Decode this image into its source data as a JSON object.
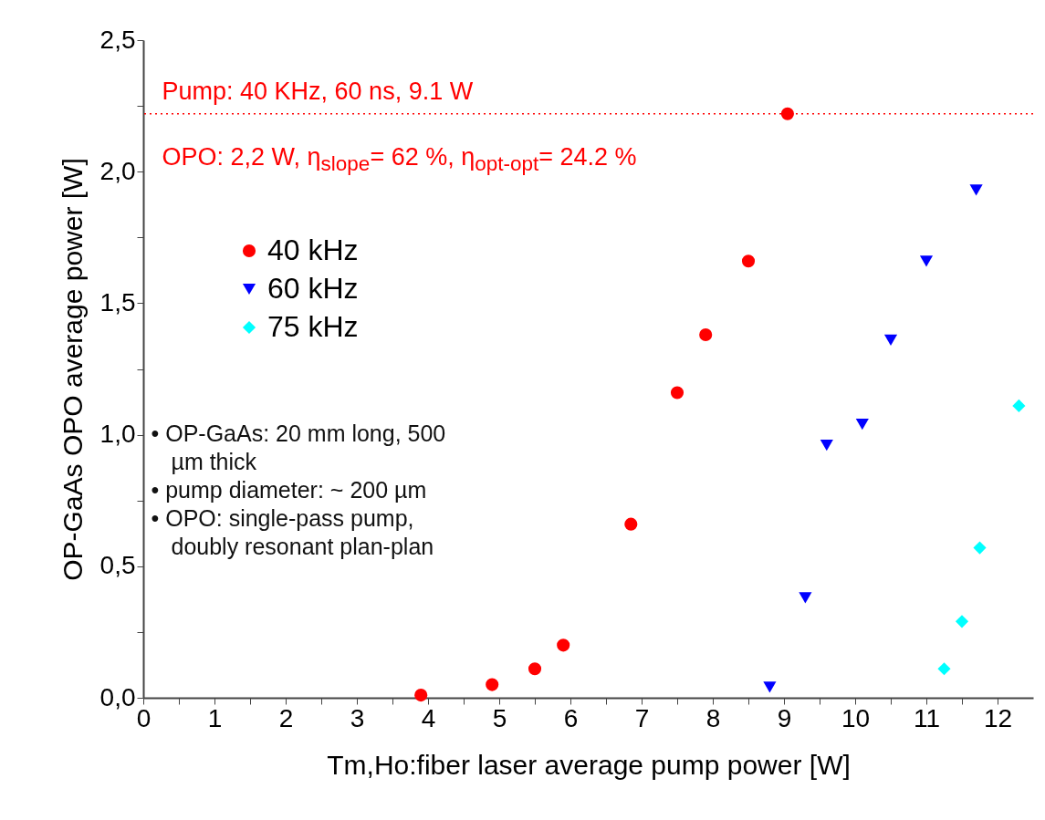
{
  "chart_data": {
    "type": "scatter",
    "xlabel": "Tm,Ho:fiber laser average pump power [W]",
    "ylabel": "OP-GaAs OPO average power [W]",
    "xlim": [
      0,
      12.5
    ],
    "ylim": [
      0,
      2.5
    ],
    "xticks": [
      0,
      {
        "value": 0.5,
        "label": null
      },
      1,
      {
        "value": 1.5,
        "label": null
      },
      2,
      {
        "value": 2.5,
        "label": null
      },
      3,
      {
        "value": 3.5,
        "label": null
      },
      4,
      {
        "value": 4.5,
        "label": null
      },
      5,
      {
        "value": 5.5,
        "label": null
      },
      6,
      {
        "value": 6.5,
        "label": null
      },
      7,
      {
        "value": 7.5,
        "label": null
      },
      8,
      {
        "value": 8.5,
        "label": null
      },
      9,
      {
        "value": 9.5,
        "label": null
      },
      10,
      {
        "value": 10.5,
        "label": null
      },
      11,
      {
        "value": 11.5,
        "label": null
      },
      12
    ],
    "yticks": [
      {
        "value": 0,
        "label": "0,0"
      },
      {
        "value": 0.25,
        "label": null
      },
      {
        "value": 0.5,
        "label": "0,5"
      },
      {
        "value": 0.75,
        "label": null
      },
      {
        "value": 1,
        "label": "1,0"
      },
      {
        "value": 1.25,
        "label": null
      },
      {
        "value": 1.5,
        "label": "1,5"
      },
      {
        "value": 1.75,
        "label": null
      },
      {
        "value": 2,
        "label": "2,0"
      },
      {
        "value": 2.25,
        "label": null
      },
      {
        "value": 2.5,
        "label": "2,5"
      }
    ],
    "grid": false,
    "legend": "left",
    "series": [
      {
        "name": "40 kHz",
        "color": "#ff0000",
        "marker": "circle",
        "x": [
          3.9,
          4.9,
          5.5,
          5.9,
          6.85,
          7.5,
          7.9,
          8.5,
          9.05
        ],
        "values": [
          0.01,
          0.05,
          0.11,
          0.2,
          0.66,
          1.16,
          1.38,
          1.66,
          2.22
        ]
      },
      {
        "name": "60 kHz",
        "color": "#0000ff",
        "marker": "triangle",
        "x": [
          8.8,
          9.3,
          9.6,
          10.1,
          10.5,
          11.0,
          11.7
        ],
        "values": [
          0.04,
          0.38,
          0.96,
          1.04,
          1.36,
          1.66,
          1.93
        ]
      },
      {
        "name": "75 kHz",
        "color": "#00ffff",
        "marker": "diamond",
        "x": [
          11.25,
          11.5,
          11.75,
          12.3
        ],
        "values": [
          0.11,
          0.29,
          0.57,
          1.11
        ]
      }
    ],
    "ref_lines": [
      {
        "axis": "y",
        "value": 2.22,
        "color": "#ff0000",
        "line_style": "dotted"
      }
    ],
    "annotations": [
      "Pump: 40 KHz,  60 ns,  9.1 W",
      "OPO: 2,2 W, η$_{slope}$= 62 %, η$_{opt-opt}$= 24.2 %",
      "• OP-GaAs: 20 mm long, 500 µm thick",
      "• pump diameter: ~ 200 µm",
      "• OPO: single-pass pump, doubly resonant plan-plan"
    ]
  }
}
